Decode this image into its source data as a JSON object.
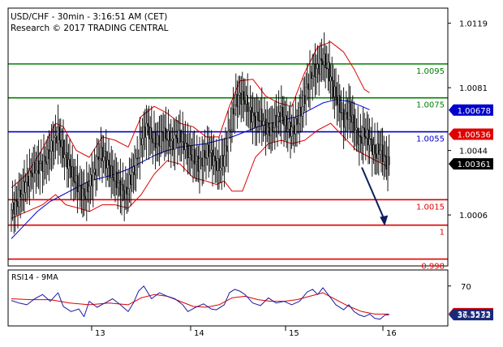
{
  "header": {
    "line1": "USD/CHF - 30min - 3:16:51 AM (CET)",
    "line2": "Research © 2017 TRADING CENTRAL"
  },
  "colors": {
    "candle": "#000000",
    "bollinger": "#e00000",
    "ma": "#0000cc",
    "resistance": "#008000",
    "pivot": "#0000cc",
    "support": "#e00000",
    "arrow": "#0b1f5a",
    "rsi": "#1a1aa0",
    "rsi_ma": "#e00000",
    "last_price_box": "#000000",
    "ma_box": "#0000cc",
    "red_box": "#e00000"
  },
  "chart_data": [
    {
      "type": "candlestick",
      "title": "USD/CHF - 30min - 3:16:51 AM (CET)",
      "x_tick_labels": [
        "13",
        "14",
        "15",
        "16"
      ],
      "y_ticks": [
        1.0119,
        1.0081,
        1.0044,
        1.0006
      ],
      "ylim": [
        0.9975,
        1.0126
      ],
      "levels": [
        {
          "value": 1.0095,
          "label": "1.0095",
          "kind": "resistance"
        },
        {
          "value": 1.0075,
          "label": "1.0075",
          "kind": "resistance"
        },
        {
          "value": 1.0055,
          "label": "1.0055",
          "kind": "pivot"
        },
        {
          "value": 1.0015,
          "label": "1.0015",
          "kind": "support"
        },
        {
          "value": 1.0,
          "label": "1",
          "kind": "support"
        },
        {
          "value": 0.998,
          "label": "0.998",
          "kind": "support"
        }
      ],
      "price_tags": [
        {
          "value": 1.00678,
          "label": "1.00678",
          "kind": "ma"
        },
        {
          "value": 1.00536,
          "label": "1.00536",
          "kind": "bollinger"
        },
        {
          "value": 1.00361,
          "label": "1.00361",
          "kind": "last"
        }
      ],
      "close_path": [
        [
          0,
          1.0009
        ],
        [
          4,
          1.0013
        ],
        [
          8,
          1.002
        ],
        [
          12,
          1.0026
        ],
        [
          16,
          1.0032
        ],
        [
          20,
          1.0034
        ],
        [
          24,
          1.0036
        ],
        [
          28,
          1.004
        ],
        [
          32,
          1.0048
        ],
        [
          36,
          1.0054
        ],
        [
          40,
          1.0043
        ],
        [
          44,
          1.0036
        ],
        [
          48,
          1.0028
        ],
        [
          52,
          1.0022
        ],
        [
          56,
          1.0017
        ],
        [
          60,
          1.0024
        ],
        [
          64,
          1.0031
        ],
        [
          68,
          1.0042
        ],
        [
          72,
          1.004
        ],
        [
          76,
          1.0032
        ],
        [
          80,
          1.0027
        ],
        [
          84,
          1.0022
        ],
        [
          88,
          1.0018
        ],
        [
          92,
          1.0028
        ],
        [
          96,
          1.0036
        ],
        [
          100,
          1.005
        ],
        [
          104,
          1.0058
        ],
        [
          108,
          1.0052
        ],
        [
          112,
          1.0048
        ],
        [
          116,
          1.0054
        ],
        [
          120,
          1.0052
        ],
        [
          124,
          1.0048
        ],
        [
          128,
          1.0052
        ],
        [
          132,
          1.005
        ],
        [
          136,
          1.0044
        ],
        [
          140,
          1.004
        ],
        [
          144,
          1.0036
        ],
        [
          148,
          1.004
        ],
        [
          152,
          1.0044
        ],
        [
          156,
          1.0038
        ],
        [
          160,
          1.0034
        ],
        [
          164,
          1.004
        ],
        [
          168,
          1.0056
        ],
        [
          172,
          1.0072
        ],
        [
          176,
          1.0076
        ],
        [
          180,
          1.0074
        ],
        [
          184,
          1.0066
        ],
        [
          188,
          1.0062
        ],
        [
          192,
          1.0064
        ],
        [
          196,
          1.0058
        ],
        [
          200,
          1.0056
        ],
        [
          204,
          1.0062
        ],
        [
          208,
          1.0066
        ],
        [
          212,
          1.0058
        ],
        [
          216,
          1.0056
        ],
        [
          220,
          1.006
        ],
        [
          224,
          1.007
        ],
        [
          228,
          1.0082
        ],
        [
          232,
          1.009
        ],
        [
          236,
          1.0092
        ],
        [
          240,
          1.0098
        ],
        [
          244,
          1.0092
        ],
        [
          248,
          1.008
        ],
        [
          252,
          1.0072
        ],
        [
          256,
          1.0062
        ],
        [
          260,
          1.0068
        ],
        [
          264,
          1.0058
        ],
        [
          268,
          1.005
        ],
        [
          272,
          1.0054
        ],
        [
          276,
          1.005
        ],
        [
          280,
          1.0042
        ],
        [
          284,
          1.0045
        ],
        [
          288,
          1.0038
        ],
        [
          291,
          1.0036
        ]
      ],
      "bollinger_upper": [
        [
          0,
          1.0022
        ],
        [
          12,
          1.003
        ],
        [
          24,
          1.0045
        ],
        [
          34,
          1.006
        ],
        [
          40,
          1.0058
        ],
        [
          50,
          1.0044
        ],
        [
          60,
          1.004
        ],
        [
          70,
          1.0052
        ],
        [
          80,
          1.005
        ],
        [
          90,
          1.0046
        ],
        [
          100,
          1.0064
        ],
        [
          110,
          1.007
        ],
        [
          120,
          1.0066
        ],
        [
          130,
          1.006
        ],
        [
          140,
          1.0058
        ],
        [
          150,
          1.0052
        ],
        [
          160,
          1.0052
        ],
        [
          168,
          1.007
        ],
        [
          176,
          1.0085
        ],
        [
          186,
          1.0086
        ],
        [
          196,
          1.0076
        ],
        [
          206,
          1.0072
        ],
        [
          216,
          1.007
        ],
        [
          226,
          1.009
        ],
        [
          236,
          1.0105
        ],
        [
          246,
          1.0108
        ],
        [
          256,
          1.0102
        ],
        [
          264,
          1.0092
        ],
        [
          272,
          1.008
        ],
        [
          276,
          1.0078
        ]
      ],
      "bollinger_lower": [
        [
          0,
          1.0004
        ],
        [
          12,
          1.0008
        ],
        [
          24,
          1.0012
        ],
        [
          34,
          1.0018
        ],
        [
          42,
          1.0012
        ],
        [
          52,
          1.001
        ],
        [
          60,
          1.0008
        ],
        [
          70,
          1.0012
        ],
        [
          80,
          1.0012
        ],
        [
          90,
          1.001
        ],
        [
          100,
          1.0018
        ],
        [
          110,
          1.003
        ],
        [
          120,
          1.0038
        ],
        [
          130,
          1.0036
        ],
        [
          140,
          1.0028
        ],
        [
          150,
          1.0026
        ],
        [
          158,
          1.0024
        ],
        [
          164,
          1.0026
        ],
        [
          170,
          1.002
        ],
        [
          178,
          1.002
        ],
        [
          188,
          1.004
        ],
        [
          198,
          1.0048
        ],
        [
          208,
          1.005
        ],
        [
          216,
          1.0048
        ],
        [
          226,
          1.005
        ],
        [
          236,
          1.0056
        ],
        [
          246,
          1.006
        ],
        [
          256,
          1.0052
        ],
        [
          266,
          1.0044
        ],
        [
          276,
          1.004
        ],
        [
          286,
          1.0036
        ],
        [
          291,
          1.0034
        ]
      ],
      "moving_average": [
        [
          0,
          0.9992
        ],
        [
          10,
          1.0
        ],
        [
          20,
          1.0008
        ],
        [
          30,
          1.0014
        ],
        [
          40,
          1.0018
        ],
        [
          50,
          1.0022
        ],
        [
          60,
          1.0026
        ],
        [
          70,
          1.0028
        ],
        [
          80,
          1.003
        ],
        [
          90,
          1.0033
        ],
        [
          100,
          1.0037
        ],
        [
          110,
          1.0041
        ],
        [
          120,
          1.0044
        ],
        [
          130,
          1.0046
        ],
        [
          140,
          1.0047
        ],
        [
          150,
          1.0048
        ],
        [
          160,
          1.005
        ],
        [
          170,
          1.0052
        ],
        [
          180,
          1.0055
        ],
        [
          190,
          1.0058
        ],
        [
          200,
          1.006
        ],
        [
          210,
          1.0062
        ],
        [
          220,
          1.0064
        ],
        [
          230,
          1.0068
        ],
        [
          240,
          1.0072
        ],
        [
          250,
          1.0074
        ],
        [
          260,
          1.0073
        ],
        [
          270,
          1.007
        ],
        [
          276,
          1.0068
        ]
      ],
      "forecast_arrow": {
        "from": [
          270,
          1.0034
        ],
        "to": [
          287,
          1.0
        ]
      }
    },
    {
      "type": "line",
      "title": "RSI14 - 9MA",
      "y_ticks": [
        70
      ],
      "ylim": [
        25,
        85
      ],
      "tags": [
        {
          "value": 37.5573,
          "label": "37.5573",
          "kind": "ma"
        },
        {
          "value": 36.3232,
          "label": "36.3232",
          "kind": "rsi"
        }
      ],
      "series": [
        {
          "kind": "rsi",
          "values": [
            [
              0,
              53
            ],
            [
              6,
              50
            ],
            [
              12,
              48
            ],
            [
              18,
              55
            ],
            [
              24,
              60
            ],
            [
              30,
              52
            ],
            [
              36,
              62
            ],
            [
              40,
              46
            ],
            [
              46,
              40
            ],
            [
              52,
              43
            ],
            [
              56,
              34
            ],
            [
              60,
              52
            ],
            [
              66,
              45
            ],
            [
              72,
              50
            ],
            [
              78,
              55
            ],
            [
              84,
              48
            ],
            [
              90,
              40
            ],
            [
              94,
              50
            ],
            [
              98,
              64
            ],
            [
              102,
              70
            ],
            [
              108,
              55
            ],
            [
              114,
              62
            ],
            [
              120,
              58
            ],
            [
              126,
              55
            ],
            [
              132,
              48
            ],
            [
              136,
              40
            ],
            [
              142,
              45
            ],
            [
              148,
              49
            ],
            [
              154,
              43
            ],
            [
              158,
              42
            ],
            [
              164,
              48
            ],
            [
              168,
              62
            ],
            [
              172,
              66
            ],
            [
              176,
              64
            ],
            [
              180,
              60
            ],
            [
              186,
              50
            ],
            [
              192,
              47
            ],
            [
              198,
              56
            ],
            [
              204,
              50
            ],
            [
              210,
              52
            ],
            [
              216,
              48
            ],
            [
              222,
              52
            ],
            [
              228,
              63
            ],
            [
              232,
              66
            ],
            [
              236,
              60
            ],
            [
              240,
              68
            ],
            [
              246,
              56
            ],
            [
              250,
              48
            ],
            [
              256,
              42
            ],
            [
              260,
              48
            ],
            [
              264,
              40
            ],
            [
              268,
              36
            ],
            [
              272,
              34
            ],
            [
              276,
              37
            ],
            [
              280,
              32
            ],
            [
              284,
              31
            ],
            [
              288,
              36
            ],
            [
              291,
              36
            ]
          ]
        },
        {
          "kind": "ma",
          "values": [
            [
              0,
              55
            ],
            [
              15,
              54
            ],
            [
              30,
              54
            ],
            [
              45,
              50
            ],
            [
              60,
              48
            ],
            [
              75,
              50
            ],
            [
              90,
              48
            ],
            [
              100,
              56
            ],
            [
              110,
              60
            ],
            [
              120,
              58
            ],
            [
              130,
              52
            ],
            [
              140,
              46
            ],
            [
              150,
              45
            ],
            [
              160,
              48
            ],
            [
              170,
              56
            ],
            [
              180,
              58
            ],
            [
              190,
              54
            ],
            [
              200,
              52
            ],
            [
              210,
              52
            ],
            [
              220,
              54
            ],
            [
              230,
              58
            ],
            [
              240,
              62
            ],
            [
              250,
              54
            ],
            [
              260,
              46
            ],
            [
              270,
              40
            ],
            [
              280,
              37
            ],
            [
              291,
              37
            ]
          ]
        }
      ]
    }
  ]
}
